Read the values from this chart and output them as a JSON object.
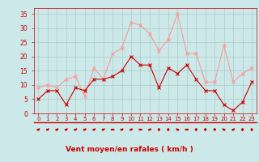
{
  "x": [
    0,
    1,
    2,
    3,
    4,
    5,
    6,
    7,
    8,
    9,
    10,
    11,
    12,
    13,
    14,
    15,
    16,
    17,
    18,
    19,
    20,
    21,
    22,
    23
  ],
  "wind_avg": [
    5,
    8,
    8,
    3,
    9,
    8,
    12,
    12,
    13,
    15,
    20,
    17,
    17,
    9,
    16,
    14,
    17,
    12,
    8,
    8,
    3,
    1,
    4,
    11
  ],
  "wind_gust": [
    9,
    10,
    9,
    12,
    13,
    6,
    16,
    12,
    21,
    23,
    32,
    31,
    28,
    22,
    26,
    35,
    21,
    21,
    11,
    11,
    24,
    11,
    14,
    16
  ],
  "bg_color": "#cce8e8",
  "grid_color": "#aacccc",
  "line_avg_color": "#cc0000",
  "line_gust_color": "#ff9999",
  "xlabel": "Vent moyen/en rafales ( km/h )",
  "xlabel_color": "#cc0000",
  "tick_color": "#cc0000",
  "yticks": [
    0,
    5,
    10,
    15,
    20,
    25,
    30,
    35
  ],
  "ylim": [
    0,
    37
  ],
  "xlim": [
    -0.5,
    23.5
  ],
  "arrow_angles_deg": [
    225,
    225,
    225,
    225,
    225,
    225,
    225,
    225,
    180,
    225,
    225,
    180,
    225,
    270,
    270,
    315,
    0,
    90,
    90,
    90,
    315,
    225,
    270,
    270
  ]
}
